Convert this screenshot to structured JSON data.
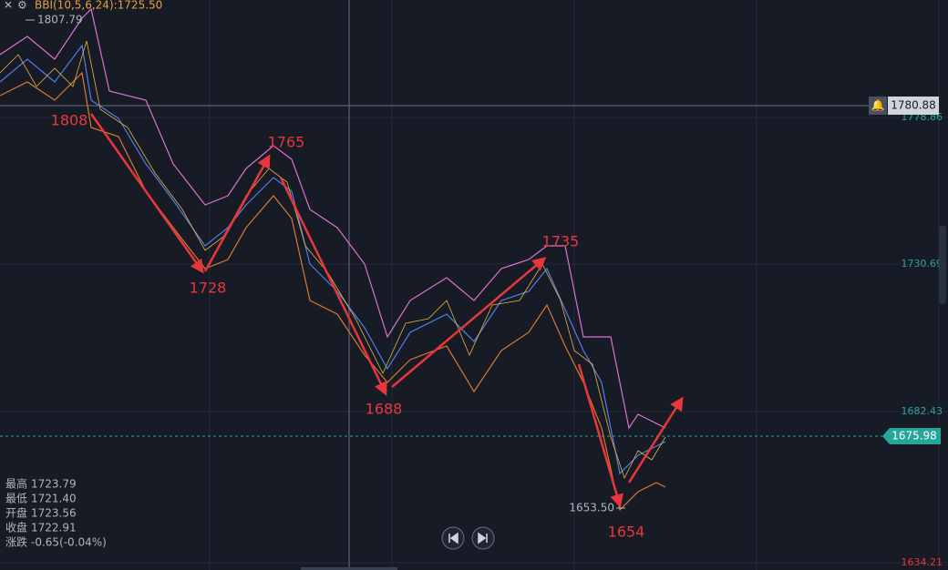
{
  "indicator": "BBI(10,5,6,24):1725.50",
  "high_label": "1807.79",
  "price_axis": [
    "1778.86",
    "1730.69",
    "1682.43",
    "1634.21"
  ],
  "crosshair_price": "1780.88",
  "last_price": "1675.98",
  "low_label": "1653.50",
  "annotations": [
    "1808",
    "1765",
    "1728",
    "1688",
    "1735",
    "1654"
  ],
  "info": [
    {
      "label": "最高",
      "value": "1723.79"
    },
    {
      "label": "最低",
      "value": "1721.40"
    },
    {
      "label": "开盘",
      "value": "1723.56"
    },
    {
      "label": "收盘",
      "value": "1722.91"
    },
    {
      "label": "涨跌",
      "value": "-0.65(-0.04%)"
    }
  ]
}
